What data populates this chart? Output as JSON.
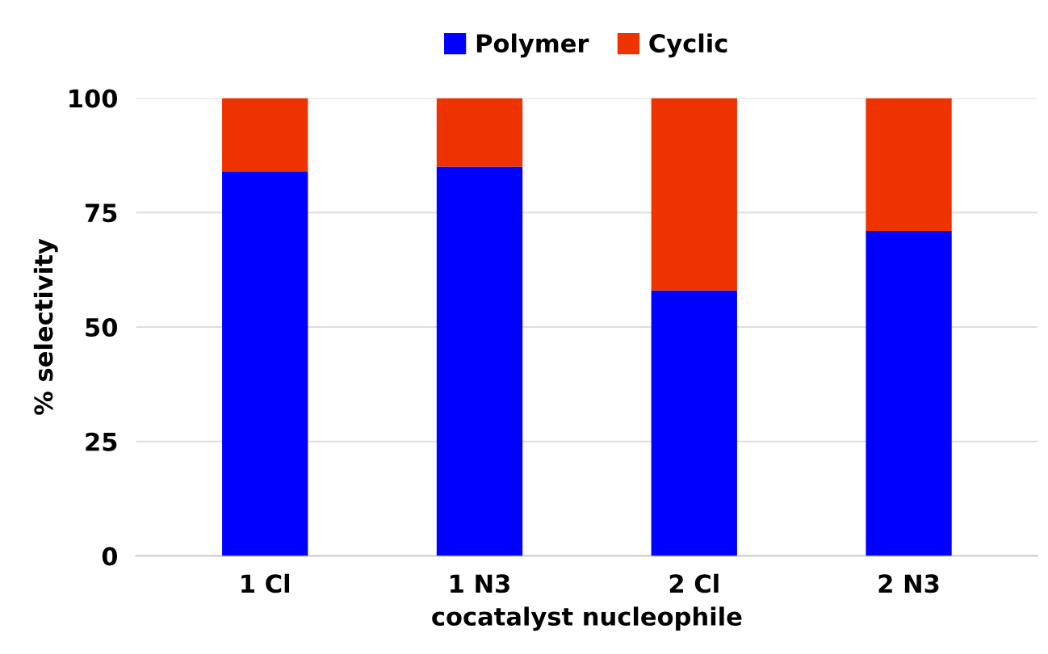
{
  "chart_data": {
    "type": "bar",
    "stacked": true,
    "categories": [
      "1 Cl",
      "1 N3",
      "2 Cl",
      "2 N3"
    ],
    "series": [
      {
        "name": "Polymer",
        "color": "#0000ff",
        "values": [
          84,
          85,
          58,
          71
        ]
      },
      {
        "name": "Cyclic",
        "color": "#ee3300",
        "values": [
          16,
          15,
          42,
          29
        ]
      }
    ],
    "xlabel": "cocatalyst nucleophile",
    "ylabel": "% selectivity",
    "ylim": [
      0,
      100
    ],
    "yticks": [
      0,
      25,
      50,
      75,
      100
    ],
    "grid": "y",
    "legend": "top"
  }
}
